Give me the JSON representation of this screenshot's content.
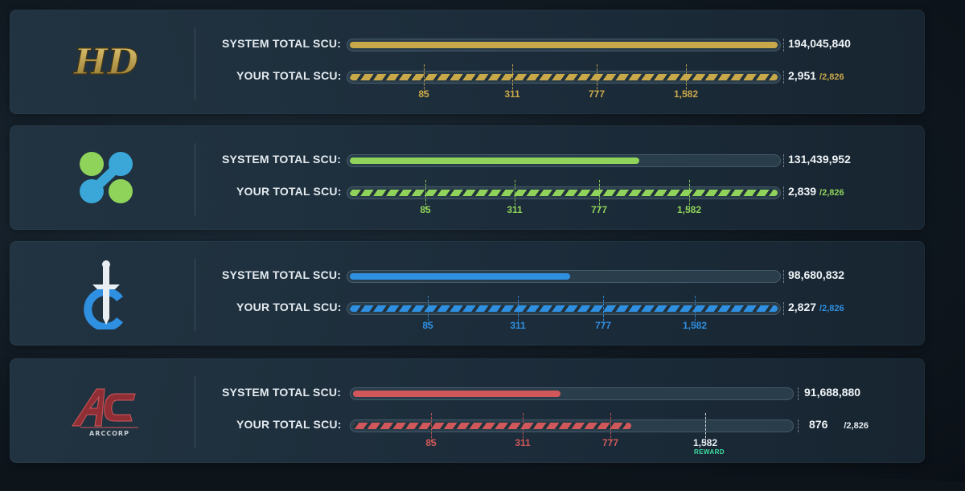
{
  "labels": {
    "system_total": "SYSTEM TOTAL SCU:",
    "your_total": "YOUR TOTAL SCU:"
  },
  "panels": [
    {
      "org": "Hurston Dynamics",
      "logo_text": "HD",
      "color": "#c9a84a",
      "system_total": "194,045,840",
      "system_fill_pct": 100,
      "your_total": "2,951",
      "your_cap": "/2,826",
      "your_fill_pct": 100,
      "milestones": [
        "85",
        "311",
        "777",
        "1,582"
      ]
    },
    {
      "org": "microTech",
      "logo_text": "",
      "color": "#8fd35a",
      "system_total": "131,439,952",
      "system_fill_pct": 68,
      "your_total": "2,839",
      "your_cap": "/2,826",
      "your_fill_pct": 100,
      "milestones": [
        "85",
        "311",
        "777",
        "1,582"
      ]
    },
    {
      "org": "Crusader Industries",
      "logo_text": "",
      "color": "#2f8fe0",
      "system_total": "98,680,832",
      "system_fill_pct": 52,
      "your_total": "2,827",
      "your_cap": "/2,826",
      "your_fill_pct": 100,
      "milestones": [
        "85",
        "311",
        "777",
        "1,582"
      ]
    },
    {
      "org": "ArcCorp",
      "logo_text": "ARCCORP",
      "color": "#d0585a",
      "system_total": "91,688,880",
      "system_fill_pct": 48,
      "your_total": "876",
      "your_cap": "/2,826",
      "your_fill_pct": 64,
      "milestones": [
        "85",
        "311",
        "777",
        "1,582"
      ],
      "reward_label": "REWARD"
    }
  ]
}
